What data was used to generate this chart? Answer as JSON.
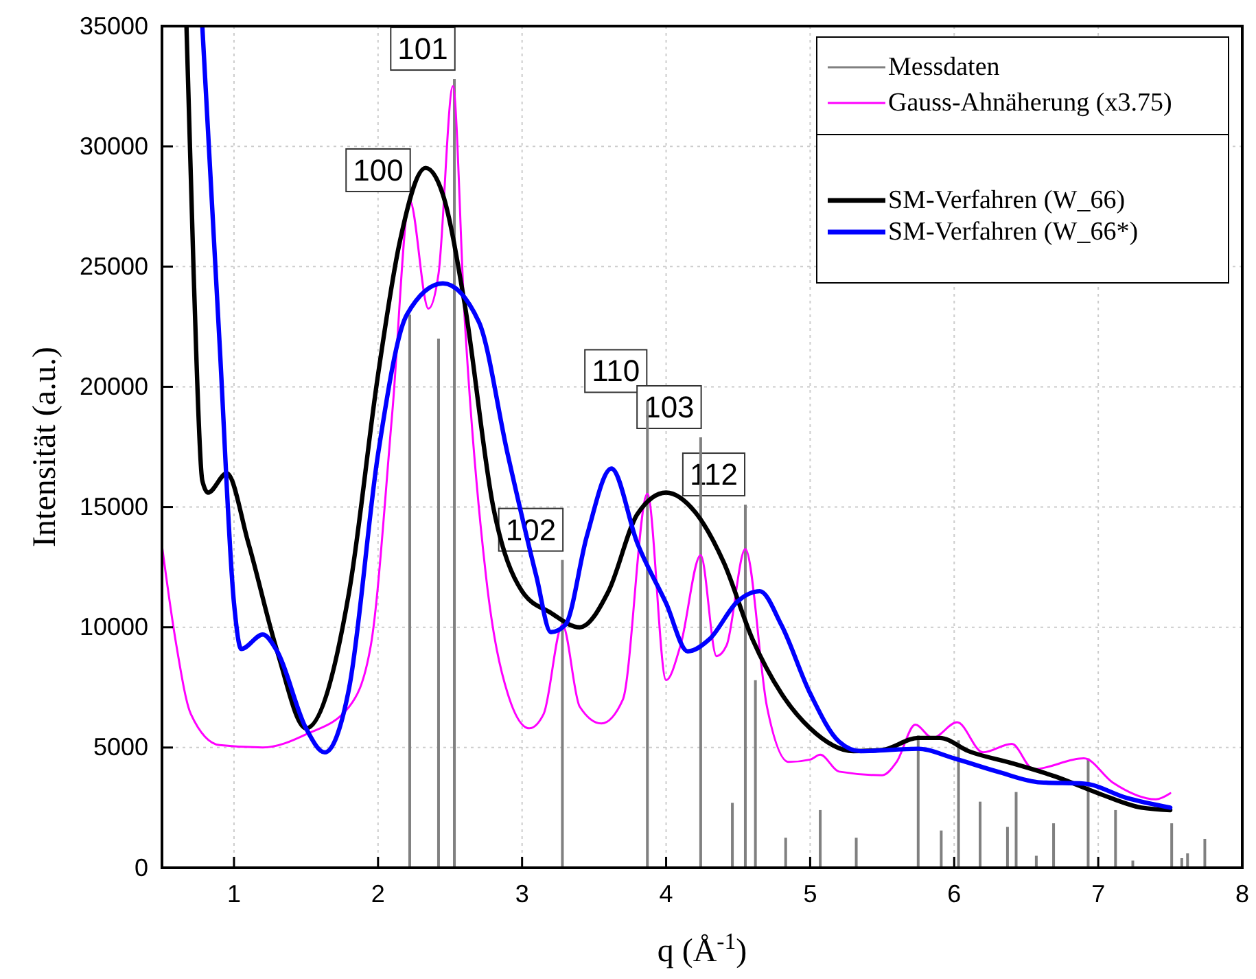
{
  "chart_data": {
    "type": "line",
    "xlabel": "q (Å$^{-1}$)",
    "ylabel": "Intensität (a.u.)",
    "xlim": [
      0.5,
      8
    ],
    "xticks": [
      1,
      2,
      3,
      4,
      5,
      6,
      7,
      8
    ],
    "ylim": [
      0,
      35000
    ],
    "yticks": [
      0,
      5000,
      10000,
      15000,
      20000,
      25000,
      30000,
      35000
    ],
    "grid": true,
    "legend": "top right",
    "series": [
      {
        "name": "Messdaten",
        "type": "bar",
        "color": "#808080",
        "x": [
          2.22,
          2.42,
          2.53,
          3.28,
          3.87,
          4.24,
          4.46,
          4.55,
          4.62,
          4.83,
          5.07,
          5.32,
          5.75,
          5.91,
          6.03,
          6.18,
          6.37,
          6.43,
          6.57,
          6.69,
          6.93,
          7.12,
          7.24,
          7.51,
          7.58,
          7.62,
          7.74
        ],
        "values": [
          23000,
          22000,
          32800,
          12800,
          19400,
          17900,
          2700,
          15100,
          7800,
          1250,
          2400,
          1250,
          5500,
          1550,
          5300,
          2750,
          1700,
          3150,
          500,
          1850,
          4550,
          2400,
          300,
          1850,
          400,
          600,
          1200
        ]
      },
      {
        "name": "Gauss-Ahnäherung (x3.75)",
        "color": "#ff00ff",
        "x": [
          0.5,
          0.6,
          0.7,
          0.9,
          1.2,
          1.5,
          1.8,
          1.95,
          2.1,
          2.22,
          2.35,
          2.42,
          2.52,
          2.6,
          2.75,
          2.9,
          3.05,
          3.15,
          3.28,
          3.4,
          3.55,
          3.7,
          3.87,
          4.0,
          4.1,
          4.24,
          4.35,
          4.42,
          4.55,
          4.7,
          4.85,
          5.0,
          5.07,
          5.2,
          5.5,
          5.6,
          5.73,
          5.85,
          6.02,
          6.2,
          6.4,
          6.55,
          6.9,
          7.1,
          7.4,
          7.5
        ],
        "values": [
          13400,
          9250,
          6400,
          5100,
          5000,
          5550,
          6700,
          9250,
          19000,
          27750,
          23250,
          24700,
          32500,
          23000,
          12100,
          7250,
          5800,
          6400,
          10100,
          6700,
          6000,
          7000,
          15550,
          7800,
          9250,
          13000,
          8800,
          9250,
          13250,
          6700,
          4400,
          4500,
          4700,
          4000,
          3850,
          4400,
          5950,
          5400,
          6050,
          4800,
          5150,
          4100,
          4550,
          3550,
          2850,
          3100
        ]
      },
      {
        "name": "SM-Verfahren (W_66)",
        "color": "#000000",
        "x": [
          0.67,
          0.72,
          0.78,
          0.82,
          0.95,
          1.1,
          1.3,
          1.5,
          1.8,
          2.0,
          2.15,
          2.33,
          2.45,
          2.6,
          2.8,
          3.0,
          3.2,
          3.4,
          3.6,
          3.8,
          4.0,
          4.2,
          4.4,
          4.6,
          4.8,
          5.0,
          5.3,
          5.5,
          5.75,
          5.9,
          6.1,
          6.4,
          6.7,
          7.0,
          7.3,
          7.5
        ],
        "values": [
          35000,
          24700,
          16100,
          15600,
          16400,
          13500,
          9000,
          5800,
          11500,
          20500,
          26000,
          29100,
          28000,
          23500,
          15000,
          11500,
          10600,
          10000,
          11500,
          14700,
          15600,
          14800,
          12700,
          9500,
          7250,
          5800,
          4850,
          4900,
          5400,
          5400,
          4850,
          4350,
          3800,
          3100,
          2500,
          2400
        ]
      },
      {
        "name": "SM-Verfahren (W_66*)",
        "color": "#0000ff",
        "x": [
          0.78,
          0.9,
          1.0,
          1.05,
          1.2,
          1.3,
          1.5,
          1.63,
          1.8,
          2.0,
          2.2,
          2.45,
          2.7,
          2.9,
          3.1,
          3.2,
          3.3,
          3.45,
          3.62,
          3.8,
          4.0,
          4.15,
          4.3,
          4.5,
          4.65,
          4.8,
          5.0,
          5.2,
          5.35,
          5.75,
          6.0,
          6.3,
          6.6,
          6.9,
          7.2,
          7.5
        ],
        "values": [
          35000,
          21800,
          11000,
          9100,
          9700,
          9000,
          5800,
          4800,
          7500,
          17200,
          23000,
          24300,
          22700,
          17200,
          12100,
          9800,
          10100,
          13800,
          16600,
          13500,
          11000,
          9000,
          9500,
          11100,
          11500,
          10100,
          7250,
          5250,
          4850,
          4950,
          4550,
          4000,
          3550,
          3500,
          2900,
          2500
        ]
      }
    ],
    "annotations": [
      {
        "text": "100",
        "x": 2.22,
        "y": 27750
      },
      {
        "text": "101",
        "x": 2.53,
        "y": 32800
      },
      {
        "text": "102",
        "x": 3.28,
        "y": 12800
      },
      {
        "text": "110",
        "x": 3.87,
        "y": 19400
      },
      {
        "text": "103",
        "x": 4.24,
        "y": 17900
      },
      {
        "text": "112",
        "x": 4.55,
        "y": 15100
      }
    ]
  }
}
